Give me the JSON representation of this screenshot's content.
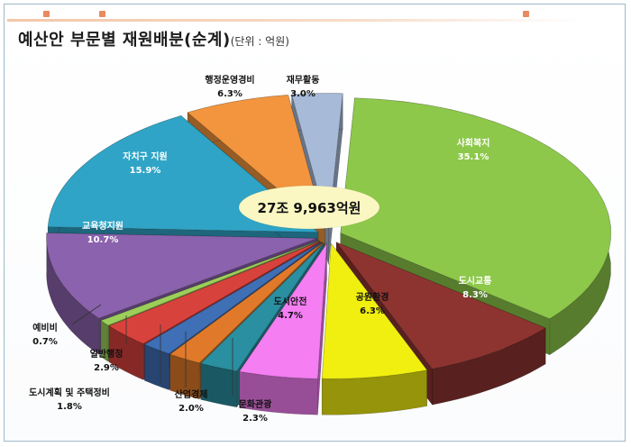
{
  "header": {
    "title": "예산안 부문별 재원배분(순계)",
    "unit": "(단위 : 억원)"
  },
  "chart_data": {
    "type": "pie",
    "title": "예산안 부문별 재원배분(순계)",
    "unit_label": "(단위 : 억원)",
    "center_label": "27조 9,963억원",
    "slices": [
      {
        "label": "사회복지",
        "value": 35.1,
        "value_label": "35.1%",
        "color": "#8dc84a"
      },
      {
        "label": "도시교통",
        "value": 8.3,
        "value_label": "8.3%",
        "color": "#8e3430"
      },
      {
        "label": "공원환경",
        "value": 6.3,
        "value_label": "6.3%",
        "color": "#f0ef10"
      },
      {
        "label": "도시안전",
        "value": 4.7,
        "value_label": "4.7%",
        "color": "#f47ef2"
      },
      {
        "label": "문화관광",
        "value": 2.3,
        "value_label": "2.3%",
        "color": "#2a8fa0"
      },
      {
        "label": "산업경제",
        "value": 2.0,
        "value_label": "2.0%",
        "color": "#e07a2a"
      },
      {
        "label": "도시계획 및 주택정비",
        "value": 1.8,
        "value_label": "1.8%",
        "color": "#3f6fb5"
      },
      {
        "label": "일반행정",
        "value": 2.9,
        "value_label": "2.9%",
        "color": "#d8423d"
      },
      {
        "label": "예비비",
        "value": 0.7,
        "value_label": "0.7%",
        "color": "#9ccf5a"
      },
      {
        "label": "교육청지원",
        "value": 10.7,
        "value_label": "10.7%",
        "color": "#8b62ad"
      },
      {
        "label": "자치구 지원",
        "value": 15.9,
        "value_label": "15.9%",
        "color": "#2fa4c6"
      },
      {
        "label": "행정운영경비",
        "value": 6.3,
        "value_label": "6.3%",
        "color": "#f2953e"
      },
      {
        "label": "재무활동",
        "value": 3.0,
        "value_label": "3.0%",
        "color": "#a7bbd8"
      }
    ]
  }
}
